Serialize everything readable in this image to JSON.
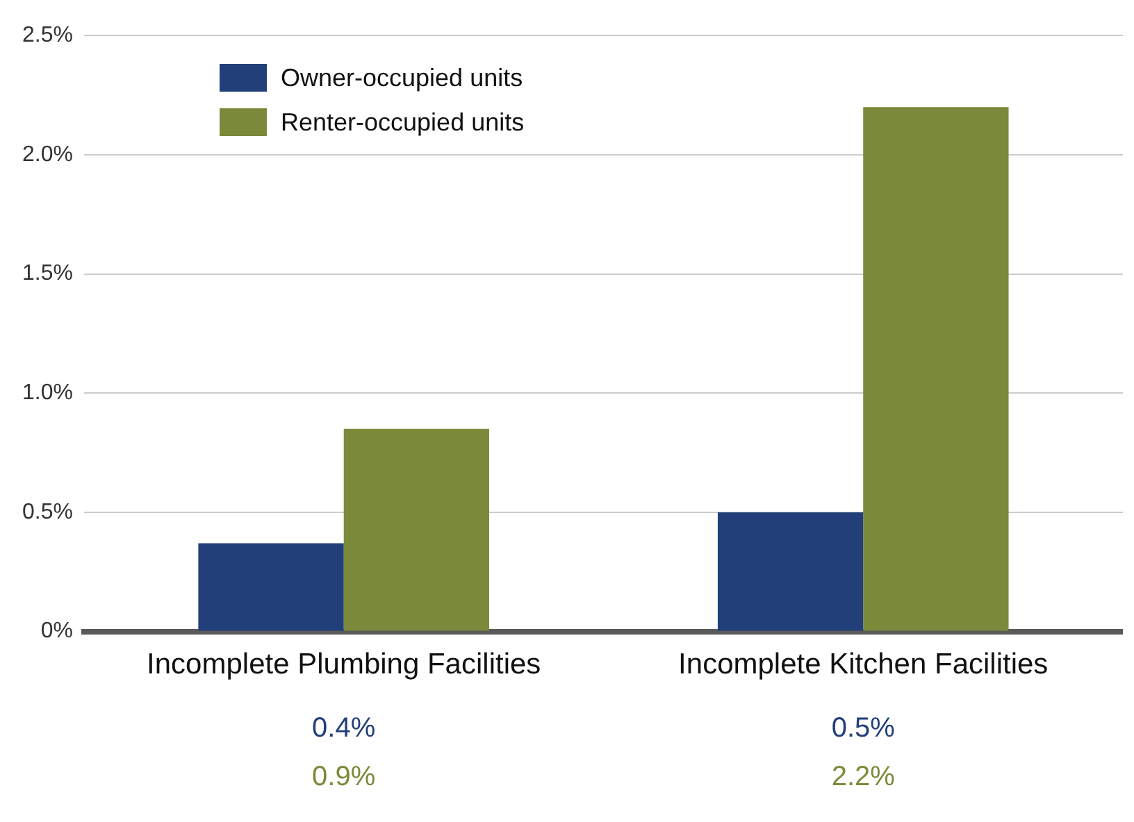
{
  "chart_data": {
    "type": "bar",
    "categories": [
      "Incomplete Plumbing Facilities",
      "Incomplete Kitchen Facilities"
    ],
    "series": [
      {
        "name": "Owner-occupied units",
        "color": "#223f7a",
        "values": [
          0.37,
          0.5
        ],
        "value_labels": [
          "0.4%",
          "0.5%"
        ]
      },
      {
        "name": "Renter-occupied units",
        "color": "#7b8a3a",
        "values": [
          0.85,
          2.2
        ],
        "value_labels": [
          "0.9%",
          "2.2%"
        ]
      }
    ],
    "ylim": [
      0,
      2.5
    ],
    "yticks": [
      {
        "value": 0,
        "label": "0%"
      },
      {
        "value": 0.5,
        "label": "0.5%"
      },
      {
        "value": 1,
        "label": "1.0%"
      },
      {
        "value": 1.5,
        "label": "1.5%"
      },
      {
        "value": 2,
        "label": "2.0%"
      },
      {
        "value": 2.5,
        "label": "2.5%"
      }
    ],
    "grid": "y",
    "legend": "top left"
  }
}
